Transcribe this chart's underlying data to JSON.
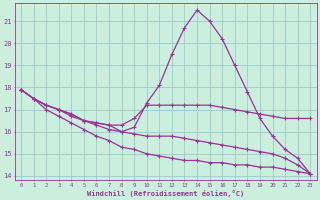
{
  "xlabel": "Windchill (Refroidissement éolien,°C)",
  "bg_color": "#cceedd",
  "grid_color": "#99cccc",
  "line_color": "#993399",
  "xlim": [
    -0.5,
    23.5
  ],
  "ylim": [
    13.8,
    21.8
  ],
  "xticks": [
    0,
    1,
    2,
    3,
    4,
    5,
    6,
    7,
    8,
    9,
    10,
    11,
    12,
    13,
    14,
    15,
    16,
    17,
    18,
    19,
    20,
    21,
    22,
    23
  ],
  "yticks": [
    14,
    15,
    16,
    17,
    18,
    19,
    20,
    21
  ],
  "lines": [
    {
      "x": [
        0,
        1,
        2,
        3,
        4,
        5,
        6,
        7,
        8,
        9,
        10,
        11,
        12,
        13,
        14,
        15,
        16,
        17,
        18,
        19,
        20,
        21,
        22,
        23
      ],
      "y": [
        17.9,
        17.5,
        17.2,
        17.0,
        16.8,
        16.5,
        16.4,
        16.3,
        16.0,
        16.2,
        17.3,
        18.1,
        19.5,
        20.7,
        21.5,
        21.0,
        20.2,
        19.0,
        17.8,
        16.6,
        15.8,
        15.2,
        14.8,
        14.1
      ],
      "marker": "D",
      "markersize": 2.2,
      "linewidth": 0.9
    },
    {
      "x": [
        0,
        1,
        2,
        3,
        4,
        5,
        6,
        7,
        8,
        9,
        10,
        11,
        12,
        13,
        14,
        15,
        16,
        17,
        18,
        19,
        20,
        21,
        22,
        23
      ],
      "y": [
        17.9,
        17.5,
        17.2,
        17.0,
        16.8,
        16.5,
        16.4,
        16.3,
        16.3,
        16.6,
        17.2,
        17.2,
        17.2,
        17.2,
        17.2,
        17.2,
        17.1,
        17.0,
        16.9,
        16.8,
        16.7,
        16.6,
        16.6,
        16.6
      ],
      "marker": "D",
      "markersize": 2.2,
      "linewidth": 0.9
    },
    {
      "x": [
        0,
        1,
        2,
        3,
        4,
        5,
        6,
        7,
        8,
        9,
        10,
        11,
        12,
        13,
        14,
        15,
        16,
        17,
        18,
        19,
        20,
        21,
        22,
        23
      ],
      "y": [
        17.9,
        17.5,
        17.2,
        17.0,
        16.7,
        16.5,
        16.3,
        16.1,
        16.0,
        15.9,
        15.8,
        15.8,
        15.8,
        15.7,
        15.6,
        15.5,
        15.4,
        15.3,
        15.2,
        15.1,
        15.0,
        14.8,
        14.5,
        14.1
      ],
      "marker": "D",
      "markersize": 2.2,
      "linewidth": 0.9
    },
    {
      "x": [
        0,
        1,
        2,
        3,
        4,
        5,
        6,
        7,
        8,
        9,
        10,
        11,
        12,
        13,
        14,
        15,
        16,
        17,
        18,
        19,
        20,
        21,
        22,
        23
      ],
      "y": [
        17.9,
        17.5,
        17.0,
        16.7,
        16.4,
        16.1,
        15.8,
        15.6,
        15.3,
        15.2,
        15.0,
        14.9,
        14.8,
        14.7,
        14.7,
        14.6,
        14.6,
        14.5,
        14.5,
        14.4,
        14.4,
        14.3,
        14.2,
        14.1
      ],
      "marker": "D",
      "markersize": 2.2,
      "linewidth": 0.9
    }
  ]
}
